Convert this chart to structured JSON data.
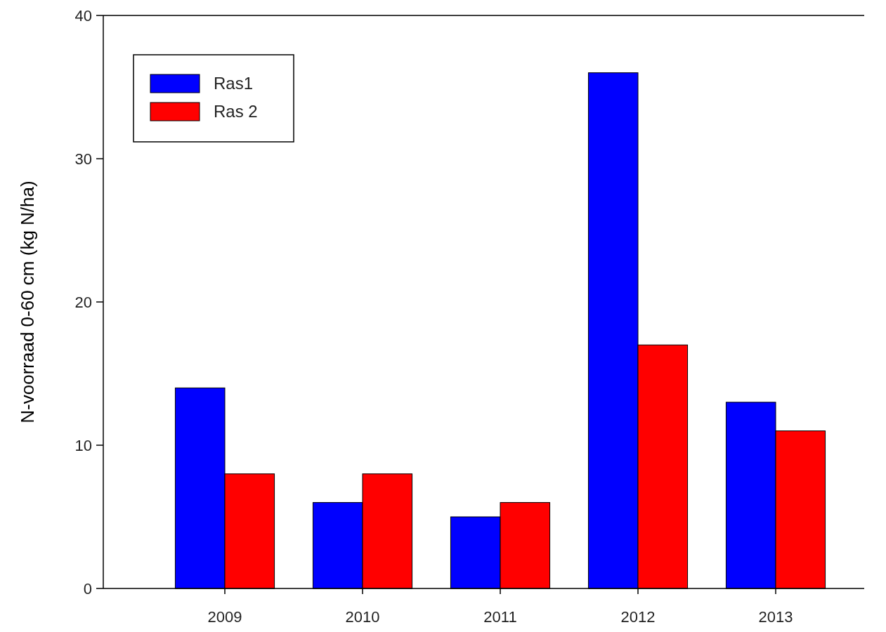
{
  "chart_data": {
    "type": "bar",
    "ylabel": "N-voorraad 0-60 cm (kg N/ha)",
    "categories": [
      "2009",
      "2010",
      "2011",
      "2012",
      "2013"
    ],
    "series": [
      {
        "name": "Ras1",
        "color": "#0000ff",
        "values": [
          14,
          6,
          5,
          36,
          13
        ]
      },
      {
        "name": "Ras 2",
        "color": "#ff0000",
        "values": [
          8,
          8,
          6,
          17,
          11
        ]
      }
    ],
    "ylim": [
      0,
      40
    ],
    "yticks": [
      0,
      10,
      20,
      30,
      40
    ],
    "legend": "top left"
  }
}
